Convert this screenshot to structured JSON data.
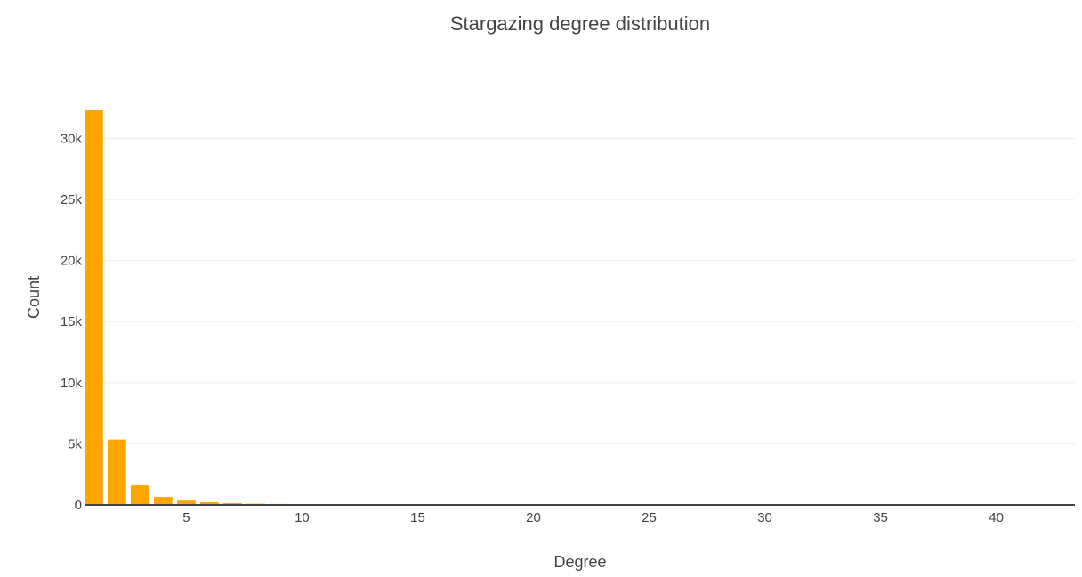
{
  "chart_data": {
    "type": "bar",
    "title": "Stargazing degree distribution",
    "xlabel": "Degree",
    "ylabel": "Count",
    "color": "#FFA500",
    "xlim": [
      0.6,
      43.4
    ],
    "ylim": [
      0,
      33900
    ],
    "xticks": [
      5,
      10,
      15,
      20,
      25,
      30,
      35,
      40
    ],
    "xtick_labels": [
      "5",
      "10",
      "15",
      "20",
      "25",
      "30",
      "35",
      "40"
    ],
    "yticks": [
      0,
      5000,
      10000,
      15000,
      20000,
      25000,
      30000
    ],
    "ytick_labels": [
      "0",
      "5k",
      "10k",
      "15k",
      "20k",
      "25k",
      "30k"
    ],
    "grid": true,
    "x": [
      1,
      2,
      3,
      4,
      5,
      6,
      7,
      8,
      9,
      10,
      11,
      12,
      13,
      14,
      15,
      16,
      17,
      18,
      19,
      20,
      21,
      24,
      25,
      27,
      32,
      38,
      40,
      43
    ],
    "values": [
      32300,
      5350,
      1600,
      650,
      350,
      220,
      150,
      100,
      80,
      65,
      55,
      45,
      40,
      35,
      30,
      25,
      22,
      20,
      18,
      15,
      12,
      8,
      7,
      6,
      5,
      4,
      4,
      3
    ]
  }
}
